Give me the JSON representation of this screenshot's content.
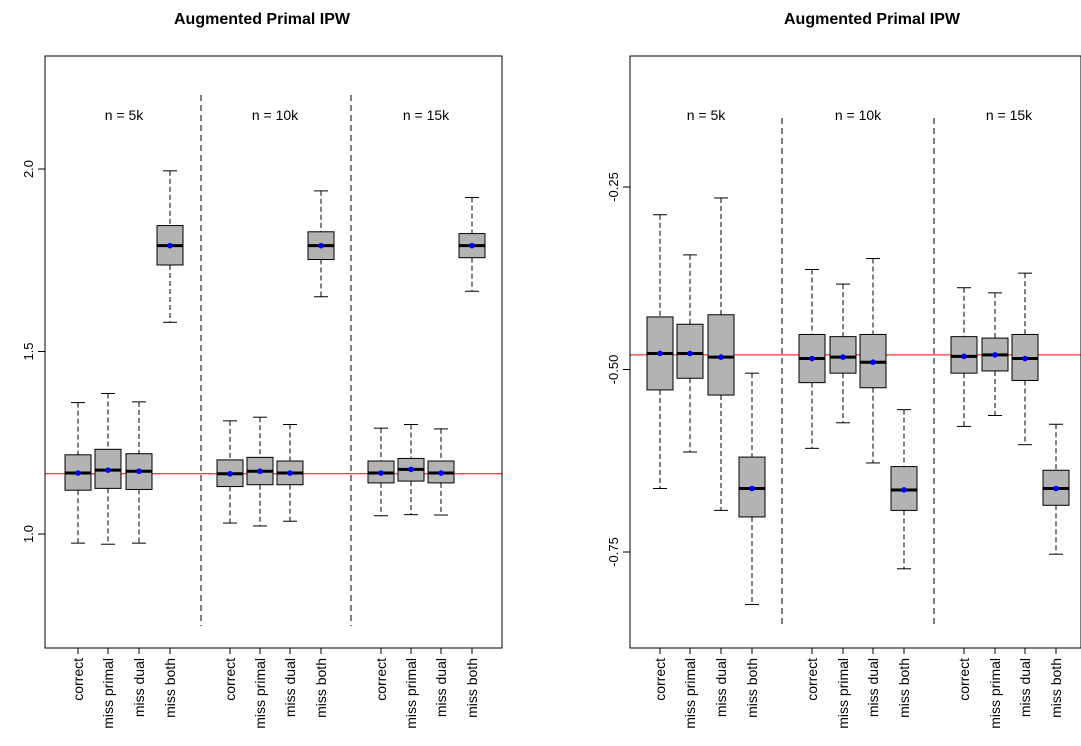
{
  "chart_data": [
    {
      "type": "boxplot",
      "title": "Augmented Primal IPW",
      "xlabel": "",
      "ylabel": "",
      "ylim": [
        0.7,
        2.25
      ],
      "yticks": [
        "1.0",
        "1.5",
        "2.0"
      ],
      "reference_line": {
        "value": 1.165,
        "color": "#ff0000"
      },
      "groups": [
        {
          "label": "n = 5k",
          "boxes": [
            {
              "category": "correct",
              "min": 0.975,
              "q1": 1.12,
              "median": 1.167,
              "q3": 1.217,
              "max": 1.36,
              "mean": 1.167
            },
            {
              "category": "miss primal",
              "min": 0.972,
              "q1": 1.125,
              "median": 1.175,
              "q3": 1.232,
              "max": 1.385,
              "mean": 1.175
            },
            {
              "category": "miss dual",
              "min": 0.975,
              "q1": 1.122,
              "median": 1.172,
              "q3": 1.22,
              "max": 1.362,
              "mean": 1.172
            },
            {
              "category": "miss both",
              "min": 1.58,
              "q1": 1.737,
              "median": 1.79,
              "q3": 1.845,
              "max": 1.995,
              "mean": 1.79
            }
          ]
        },
        {
          "label": "n = 10k",
          "boxes": [
            {
              "category": "correct",
              "min": 1.03,
              "q1": 1.13,
              "median": 1.165,
              "q3": 1.203,
              "max": 1.31,
              "mean": 1.165
            },
            {
              "category": "miss primal",
              "min": 1.022,
              "q1": 1.135,
              "median": 1.172,
              "q3": 1.21,
              "max": 1.32,
              "mean": 1.172
            },
            {
              "category": "miss dual",
              "min": 1.035,
              "q1": 1.135,
              "median": 1.167,
              "q3": 1.2,
              "max": 1.3,
              "mean": 1.167
            },
            {
              "category": "miss both",
              "min": 1.65,
              "q1": 1.752,
              "median": 1.79,
              "q3": 1.828,
              "max": 1.94,
              "mean": 1.79
            }
          ]
        },
        {
          "label": "n = 15k",
          "boxes": [
            {
              "category": "correct",
              "min": 1.05,
              "q1": 1.14,
              "median": 1.167,
              "q3": 1.2,
              "max": 1.29,
              "mean": 1.167
            },
            {
              "category": "miss primal",
              "min": 1.053,
              "q1": 1.145,
              "median": 1.177,
              "q3": 1.207,
              "max": 1.3,
              "mean": 1.177
            },
            {
              "category": "miss dual",
              "min": 1.052,
              "q1": 1.14,
              "median": 1.167,
              "q3": 1.2,
              "max": 1.288,
              "mean": 1.167
            },
            {
              "category": "miss both",
              "min": 1.665,
              "q1": 1.757,
              "median": 1.79,
              "q3": 1.823,
              "max": 1.922,
              "mean": 1.79
            }
          ]
        }
      ]
    },
    {
      "type": "boxplot",
      "title": "Augmented Primal IPW",
      "xlabel": "",
      "ylabel": "",
      "ylim": [
        -0.87,
        -0.08
      ],
      "yticks": [
        "-0.25",
        "-0.50",
        "-0.75"
      ],
      "reference_line": {
        "value": -0.48,
        "color": "#ff0000"
      },
      "groups": [
        {
          "label": "n = 5k",
          "boxes": [
            {
              "category": "correct",
              "min": -0.663,
              "q1": -0.528,
              "median": -0.478,
              "q3": -0.428,
              "max": -0.288,
              "mean": -0.478
            },
            {
              "category": "miss primal",
              "min": -0.613,
              "q1": -0.512,
              "median": -0.478,
              "q3": -0.438,
              "max": -0.343,
              "mean": -0.478
            },
            {
              "category": "miss dual",
              "min": -0.693,
              "q1": -0.535,
              "median": -0.483,
              "q3": -0.425,
              "max": -0.265,
              "mean": -0.483
            },
            {
              "category": "miss both",
              "min": -0.822,
              "q1": -0.702,
              "median": -0.663,
              "q3": -0.62,
              "max": -0.505,
              "mean": -0.663
            }
          ]
        },
        {
          "label": "n = 10k",
          "boxes": [
            {
              "category": "correct",
              "min": -0.608,
              "q1": -0.518,
              "median": -0.485,
              "q3": -0.452,
              "max": -0.363,
              "mean": -0.485
            },
            {
              "category": "miss primal",
              "min": -0.573,
              "q1": -0.505,
              "median": -0.483,
              "q3": -0.455,
              "max": -0.383,
              "mean": -0.483
            },
            {
              "category": "miss dual",
              "min": -0.628,
              "q1": -0.525,
              "median": -0.49,
              "q3": -0.452,
              "max": -0.348,
              "mean": -0.49
            },
            {
              "category": "miss both",
              "min": -0.773,
              "q1": -0.693,
              "median": -0.665,
              "q3": -0.633,
              "max": -0.555,
              "mean": -0.665
            }
          ]
        },
        {
          "label": "n = 15k",
          "boxes": [
            {
              "category": "correct",
              "min": -0.578,
              "q1": -0.505,
              "median": -0.482,
              "q3": -0.455,
              "max": -0.388,
              "mean": -0.482
            },
            {
              "category": "miss primal",
              "min": -0.563,
              "q1": -0.502,
              "median": -0.48,
              "q3": -0.457,
              "max": -0.395,
              "mean": -0.48
            },
            {
              "category": "miss dual",
              "min": -0.603,
              "q1": -0.515,
              "median": -0.485,
              "q3": -0.452,
              "max": -0.368,
              "mean": -0.485
            },
            {
              "category": "miss both",
              "min": -0.753,
              "q1": -0.686,
              "median": -0.663,
              "q3": -0.638,
              "max": -0.575,
              "mean": -0.663
            }
          ]
        }
      ]
    }
  ]
}
